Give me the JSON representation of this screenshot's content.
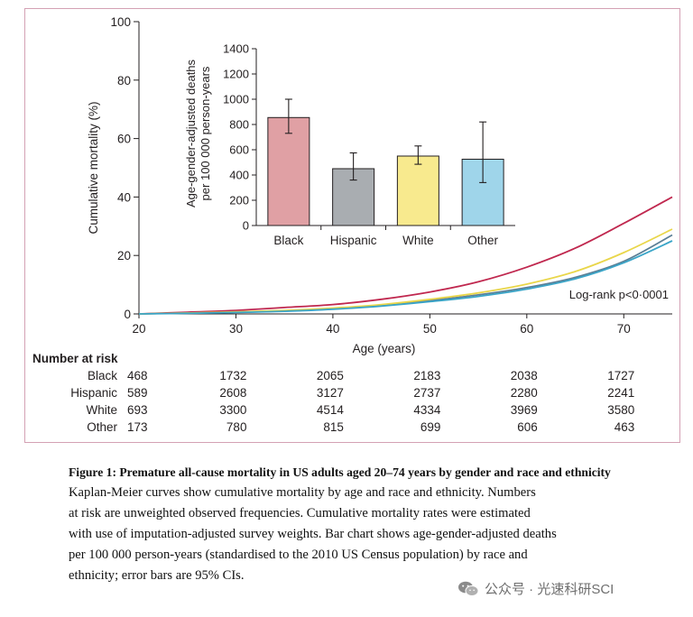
{
  "chart_data": [
    {
      "type": "line",
      "name": "Kaplan-Meier curves",
      "ylabel": "Cumulative mortality (%)",
      "xlabel": "Age (years)",
      "xlim": [
        20,
        75
      ],
      "ylim": [
        0,
        100
      ],
      "xticks": [
        20,
        30,
        40,
        50,
        60,
        70
      ],
      "yticks": [
        0,
        20,
        40,
        60,
        80,
        100
      ],
      "x": [
        20,
        25,
        30,
        35,
        40,
        45,
        50,
        55,
        60,
        65,
        70,
        75
      ],
      "series": [
        {
          "name": "Black",
          "color": "#c0284f",
          "values": [
            0,
            0.6,
            1.2,
            2.2,
            3.2,
            5,
            7.5,
            11,
            16,
            22.5,
            31,
            40
          ]
        },
        {
          "name": "Hispanic",
          "color": "#5b7f96",
          "values": [
            0,
            0.3,
            0.6,
            1.0,
            1.7,
            3.0,
            4.6,
            6.5,
            9.0,
            12.5,
            18,
            27
          ]
        },
        {
          "name": "White",
          "color": "#e9d64a",
          "values": [
            0,
            0.3,
            0.7,
            1.2,
            2.0,
            3.2,
            5.0,
            7.2,
            10.2,
            14.5,
            21,
            29
          ]
        },
        {
          "name": "Other",
          "color": "#3aa5c8",
          "values": [
            0,
            0.2,
            0.5,
            0.9,
            1.6,
            2.7,
            4.2,
            6.0,
            8.5,
            12,
            17.5,
            25
          ]
        }
      ],
      "annotation": "Log-rank p<0·0001"
    },
    {
      "type": "bar",
      "name": "Inset bar chart",
      "ylabel_line1": "Age-gender-adjusted deaths",
      "ylabel_line2": "per 100 000 person-years",
      "ylim": [
        0,
        1400
      ],
      "yticks": [
        0,
        200,
        400,
        600,
        800,
        1000,
        1200,
        1400
      ],
      "categories": [
        "Black",
        "Hispanic",
        "White",
        "Other"
      ],
      "values": [
        855,
        450,
        550,
        525
      ],
      "ci_low": [
        730,
        360,
        485,
        340
      ],
      "ci_high": [
        1000,
        575,
        630,
        820
      ],
      "colors": [
        "#e0a0a4",
        "#a9adb1",
        "#f8ea8e",
        "#9fd5ea"
      ]
    }
  ],
  "risk_table": {
    "title": "Number at risk",
    "rows": [
      {
        "group": "Black",
        "values": [
          "468",
          "1732",
          "2065",
          "2183",
          "2038",
          "1727"
        ]
      },
      {
        "group": "Hispanic",
        "values": [
          "589",
          "2608",
          "3127",
          "2737",
          "2280",
          "2241"
        ]
      },
      {
        "group": "White",
        "values": [
          "693",
          "3300",
          "4514",
          "4334",
          "3969",
          "3580"
        ]
      },
      {
        "group": "Other",
        "values": [
          "173",
          "780",
          "815",
          "699",
          "606",
          "463"
        ]
      }
    ]
  },
  "caption": {
    "title": "Figure 1: Premature all-cause mortality in US adults aged 20–74 years by gender and race and ethnicity",
    "lines": [
      "Kaplan-Meier curves show cumulative mortality by age and race and ethnicity. Numbers",
      "at risk are unweighted observed frequencies. Cumulative mortality rates were estimated",
      "with use of imputation-adjusted survey weights. Bar chart shows age-gender-adjusted deaths",
      "per 100 000 person-years (standardised to the 2010 US Census population) by race and",
      "ethnicity; error bars are 95% CIs."
    ]
  },
  "watermark": {
    "text": "公众号 · 光速科研SCI",
    "icon": "wechat-icon"
  }
}
